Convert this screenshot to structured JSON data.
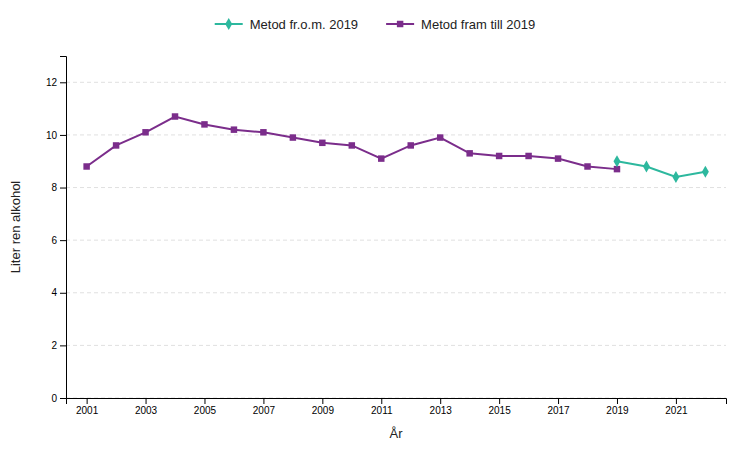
{
  "chart_data": {
    "type": "line",
    "x_label": "År",
    "y_label": "Liter ren alkohol",
    "series": [
      {
        "name": "Metod fr.o.m. 2019",
        "color": "#2db89e",
        "marker": "diamond",
        "line_style": "solid",
        "x": [
          2019,
          2020,
          2021,
          2022
        ],
        "values": [
          9.0,
          8.8,
          8.4,
          8.6
        ]
      },
      {
        "name": "Metod fram till 2019",
        "color": "#7b2d8b",
        "marker": "square",
        "line_style": "solid",
        "x": [
          2001,
          2002,
          2003,
          2004,
          2005,
          2006,
          2007,
          2008,
          2009,
          2010,
          2011,
          2012,
          2013,
          2014,
          2015,
          2016,
          2017,
          2018,
          2019
        ],
        "values": [
          8.8,
          9.6,
          10.1,
          10.7,
          10.4,
          10.2,
          10.1,
          9.9,
          9.7,
          9.6,
          9.1,
          9.6,
          9.9,
          9.3,
          9.2,
          9.2,
          9.1,
          8.8,
          8.7
        ]
      }
    ],
    "xlim": [
      2000.3,
      2022.7
    ],
    "xticks": [
      2001,
      2003,
      2005,
      2007,
      2009,
      2011,
      2013,
      2015,
      2017,
      2019,
      2021
    ],
    "ylim": [
      0,
      13
    ],
    "yticks": [
      0,
      2,
      4,
      6,
      8,
      10,
      12
    ],
    "grid": true,
    "legend": "top"
  }
}
